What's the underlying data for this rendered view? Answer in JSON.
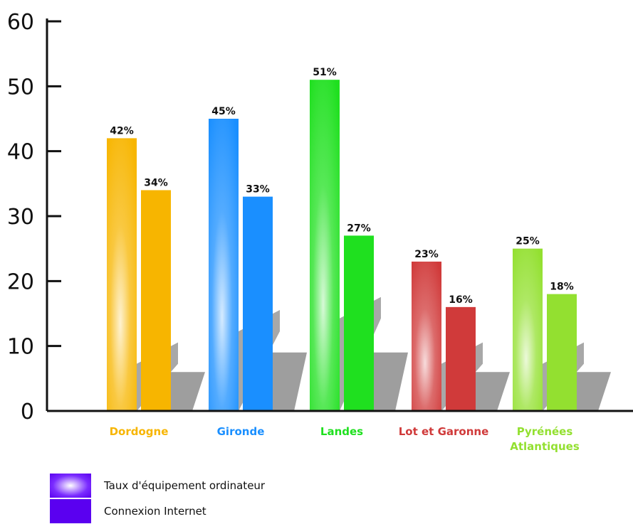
{
  "chart_data": {
    "type": "bar",
    "categories": [
      "Dordogne",
      "Gironde",
      "Landes",
      "Lot et Garonne",
      "Pyrénées Atlantiques"
    ],
    "category_lines": [
      [
        "Dordogne"
      ],
      [
        "Gironde"
      ],
      [
        "Landes"
      ],
      [
        "Lot et Garonne"
      ],
      [
        "Pyrénées",
        "Atlantiques"
      ]
    ],
    "category_colors": [
      "#f7b500",
      "#1a8fff",
      "#1fe01f",
      "#d03a3a",
      "#93e030"
    ],
    "series": [
      {
        "name": "Taux d'équipement ordinateur",
        "values": [
          42,
          45,
          51,
          23,
          25
        ],
        "labels": [
          "42%",
          "45%",
          "51%",
          "23%",
          "25%"
        ]
      },
      {
        "name": "Connexion Internet",
        "values": [
          34,
          33,
          27,
          16,
          18
        ],
        "labels": [
          "34%",
          "33%",
          "27%",
          "16%",
          "18%"
        ]
      }
    ],
    "ylim": [
      0,
      60
    ],
    "yticks": [
      0,
      10,
      20,
      30,
      40,
      50,
      60
    ],
    "ytick_labels": [
      "0",
      "10",
      "20",
      "30",
      "40",
      "50",
      "60"
    ],
    "grid": false,
    "legend_position": "bottom-left"
  },
  "legend": {
    "items": [
      {
        "label": "Taux d'équipement ordinateur",
        "style": "gradient",
        "color": "#6a1aff"
      },
      {
        "label": "Connexion Internet",
        "style": "solid",
        "color": "#5a00f0"
      }
    ]
  }
}
